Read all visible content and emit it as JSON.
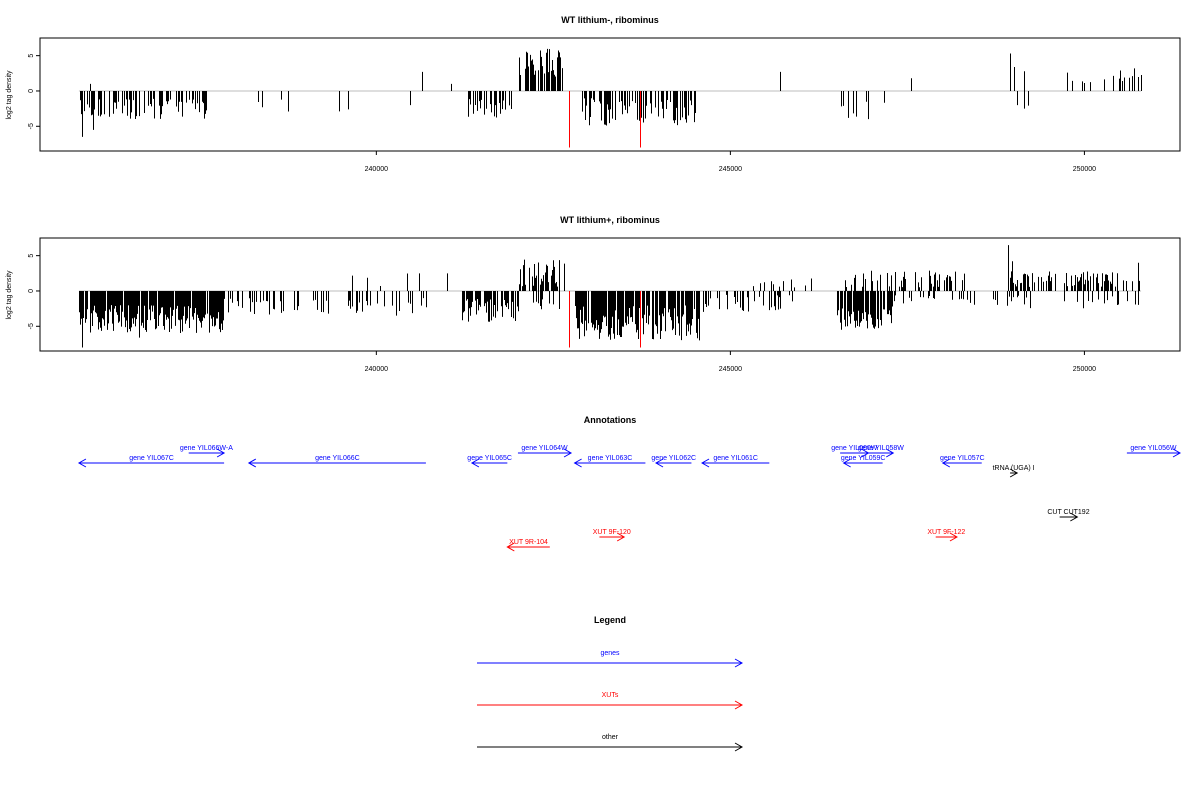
{
  "colors": {
    "bars": "#000000",
    "marker": "#ff0000",
    "genes": "#0000ff",
    "xuts": "#ff0000",
    "other": "#000000",
    "zero_line": "#bebebe"
  },
  "chart_data": [
    {
      "type": "bar",
      "title": "WT lithium-, ribominus",
      "ylabel": "log2 tag density",
      "xlim": [
        235250,
        251350
      ],
      "ylim": [
        -8.5,
        7.5
      ],
      "xticks": [
        240000,
        245000,
        250000
      ],
      "yticks": [
        5,
        0,
        -5
      ],
      "markers": [
        {
          "x": 242720,
          "y": -8.0
        },
        {
          "x": 243720,
          "y": -8.0
        }
      ],
      "segments": [
        {
          "x0": 235800,
          "x1": 237650,
          "min": 1,
          "max": 4,
          "density": 0.55,
          "sign": -1,
          "seed": 11
        },
        {
          "x0": 237850,
          "x1": 239800,
          "min": 1,
          "max": 3.5,
          "density": 0.05,
          "sign": -1,
          "seed": 12
        },
        {
          "x0": 241250,
          "x1": 241920,
          "min": 1,
          "max": 4,
          "density": 0.5,
          "sign": -1,
          "seed": 13
        },
        {
          "x0": 242020,
          "x1": 242630,
          "min": 2,
          "max": 6,
          "density": 0.75,
          "sign": 1,
          "seed": 14
        },
        {
          "x0": 242900,
          "x1": 244550,
          "min": 1,
          "max": 5,
          "density": 0.6,
          "sign": -1,
          "seed": 15
        },
        {
          "x0": 244600,
          "x1": 245500,
          "min": 1,
          "max": 2.5,
          "density": 0.04,
          "sign": -1,
          "seed": 16
        },
        {
          "x0": 246550,
          "x1": 247350,
          "min": 1,
          "max": 4,
          "density": 0.15,
          "sign": -1,
          "seed": 17
        },
        {
          "x0": 248900,
          "x1": 249300,
          "min": 1,
          "max": 2.5,
          "density": 0.08,
          "sign": -1,
          "seed": 18
        },
        {
          "x0": 249700,
          "x1": 250800,
          "min": 1,
          "max": 2.5,
          "density": 0.2,
          "sign": 1,
          "seed": 19
        }
      ],
      "spikes": [
        [
          235850,
          -6.5
        ],
        [
          235950,
          1.0
        ],
        [
          240650,
          2.7
        ],
        [
          241050,
          1.0
        ],
        [
          245700,
          2.7
        ],
        [
          247550,
          1.8
        ],
        [
          248950,
          5.3
        ],
        [
          249000,
          3.4
        ],
        [
          249150,
          2.8
        ],
        [
          249050,
          -2.0
        ],
        [
          249150,
          -2.5
        ],
        [
          249750,
          2.6
        ],
        [
          250500,
          2.9
        ],
        [
          250700,
          3.2
        ],
        [
          236000,
          -5.5
        ],
        [
          240480,
          -2.0
        ]
      ]
    },
    {
      "type": "bar",
      "title": "WT lithium+, ribominus",
      "ylabel": "log2 tag density",
      "xlim": [
        235250,
        251350
      ],
      "ylim": [
        -8.5,
        7.5
      ],
      "xticks": [
        240000,
        245000,
        250000
      ],
      "yticks": [
        5,
        0,
        -5
      ],
      "markers": [
        {
          "x": 242720,
          "y": -8.0
        },
        {
          "x": 243720,
          "y": -8.0
        }
      ],
      "segments": [
        {
          "x0": 235800,
          "x1": 237850,
          "min": 2,
          "max": 6,
          "density": 0.95,
          "sign": -1,
          "seed": 21
        },
        {
          "x0": 237850,
          "x1": 240700,
          "min": 1,
          "max": 3.5,
          "density": 0.25,
          "sign": -1,
          "seed": 22
        },
        {
          "x0": 239500,
          "x1": 240700,
          "min": 0.5,
          "max": 2.5,
          "density": 0.08,
          "sign": 1,
          "seed": 23
        },
        {
          "x0": 241200,
          "x1": 242000,
          "min": 1,
          "max": 4.5,
          "density": 0.75,
          "sign": -1,
          "seed": 24
        },
        {
          "x0": 242000,
          "x1": 242650,
          "min": 0.5,
          "max": 4.5,
          "density": 0.6,
          "sign": 1,
          "seed": 25
        },
        {
          "x0": 242200,
          "x1": 242700,
          "min": 1,
          "max": 3,
          "density": 0.3,
          "sign": -1,
          "seed": 26
        },
        {
          "x0": 242800,
          "x1": 244550,
          "min": 2,
          "max": 7,
          "density": 0.9,
          "sign": -1,
          "seed": 27
        },
        {
          "x0": 244550,
          "x1": 245900,
          "min": 0.5,
          "max": 3,
          "density": 0.25,
          "sign": -1,
          "seed": 28
        },
        {
          "x0": 245200,
          "x1": 246300,
          "min": 0.5,
          "max": 2,
          "density": 0.08,
          "sign": 1,
          "seed": 29
        },
        {
          "x0": 246500,
          "x1": 247300,
          "min": 2,
          "max": 5.5,
          "density": 0.85,
          "sign": -1,
          "seed": 30
        },
        {
          "x0": 246600,
          "x1": 248300,
          "min": 0.5,
          "max": 3,
          "density": 0.35,
          "sign": 1,
          "seed": 31
        },
        {
          "x0": 247300,
          "x1": 248900,
          "min": 0.5,
          "max": 2,
          "density": 0.12,
          "sign": -1,
          "seed": 32
        },
        {
          "x0": 248900,
          "x1": 249300,
          "min": 0.5,
          "max": 2.5,
          "density": 0.5,
          "sign": -1,
          "seed": 33
        },
        {
          "x0": 248950,
          "x1": 249600,
          "min": 0.5,
          "max": 2.8,
          "density": 0.4,
          "sign": 1,
          "seed": 34
        },
        {
          "x0": 249700,
          "x1": 250800,
          "min": 0.5,
          "max": 2.8,
          "density": 0.5,
          "sign": 1,
          "seed": 35
        },
        {
          "x0": 249700,
          "x1": 250800,
          "min": 0.5,
          "max": 2.5,
          "density": 0.2,
          "sign": -1,
          "seed": 36
        }
      ],
      "spikes": [
        [
          235850,
          -8.0
        ],
        [
          236650,
          -6.6
        ],
        [
          240600,
          2.5
        ],
        [
          241000,
          2.5
        ],
        [
          242500,
          4.2
        ],
        [
          248920,
          6.5
        ],
        [
          248980,
          4.2
        ],
        [
          250750,
          4.0
        ],
        [
          243680,
          -5.5
        ],
        [
          244550,
          -7.0
        ],
        [
          245700,
          -2.5
        ]
      ]
    }
  ],
  "annotations": {
    "title": "Annotations",
    "features": [
      {
        "label": "gene YIL066W-A",
        "kind": "genes",
        "x0": 237350,
        "x1": 237850,
        "dir": "+",
        "row": 0
      },
      {
        "label": "gene YIL067C",
        "kind": "genes",
        "x0": 235800,
        "x1": 237850,
        "dir": "-",
        "row": 1
      },
      {
        "label": "gene YIL066C",
        "kind": "genes",
        "x0": 238200,
        "x1": 240700,
        "dir": "-",
        "row": 1
      },
      {
        "label": "gene YIL064W",
        "kind": "genes",
        "x0": 242000,
        "x1": 242750,
        "dir": "+",
        "row": 0
      },
      {
        "label": "gene YIL065C",
        "kind": "genes",
        "x0": 241350,
        "x1": 241850,
        "dir": "-",
        "row": 1
      },
      {
        "label": "gene YIL063C",
        "kind": "genes",
        "x0": 242800,
        "x1": 243800,
        "dir": "-",
        "row": 1
      },
      {
        "label": "gene YIL062C",
        "kind": "genes",
        "x0": 243950,
        "x1": 244450,
        "dir": "-",
        "row": 1
      },
      {
        "label": "gene YIL061C",
        "kind": "genes",
        "x0": 244600,
        "x1": 245550,
        "dir": "-",
        "row": 1
      },
      {
        "label": "gene YIL060W",
        "kind": "genes",
        "x0": 246550,
        "x1": 246950,
        "dir": "+",
        "row": 0
      },
      {
        "label": "gene YIL058W",
        "kind": "genes",
        "x0": 246950,
        "x1": 247300,
        "dir": "+",
        "row": 0
      },
      {
        "label": "gene YIL059C",
        "kind": "genes",
        "x0": 246600,
        "x1": 247150,
        "dir": "-",
        "row": 1
      },
      {
        "label": "gene YIL057C",
        "kind": "genes",
        "x0": 248000,
        "x1": 248550,
        "dir": "-",
        "row": 1
      },
      {
        "label": "gene YIL056W",
        "kind": "genes",
        "x0": 250600,
        "x1": 251350,
        "dir": "+",
        "row": 0
      },
      {
        "label": "tRNA (UGA) I",
        "kind": "other",
        "x0": 248950,
        "x1": 249050,
        "dir": "+",
        "row": 2
      },
      {
        "label": "CUT CUT192",
        "kind": "other",
        "x0": 249650,
        "x1": 249900,
        "dir": "+",
        "row": 3
      },
      {
        "label": "XUT 9R-104",
        "kind": "xuts",
        "x0": 241850,
        "x1": 242450,
        "dir": "-",
        "row": 5
      },
      {
        "label": "XUT 9F-120",
        "kind": "xuts",
        "x0": 243150,
        "x1": 243500,
        "dir": "+",
        "row": 4
      },
      {
        "label": "XUT 9F-122",
        "kind": "xuts",
        "x0": 247900,
        "x1": 248200,
        "dir": "+",
        "row": 4
      }
    ]
  },
  "legend": {
    "title": "Legend",
    "items": [
      {
        "label": "genes",
        "kind": "genes"
      },
      {
        "label": "XUTs",
        "kind": "xuts"
      },
      {
        "label": "other",
        "kind": "other"
      }
    ]
  }
}
